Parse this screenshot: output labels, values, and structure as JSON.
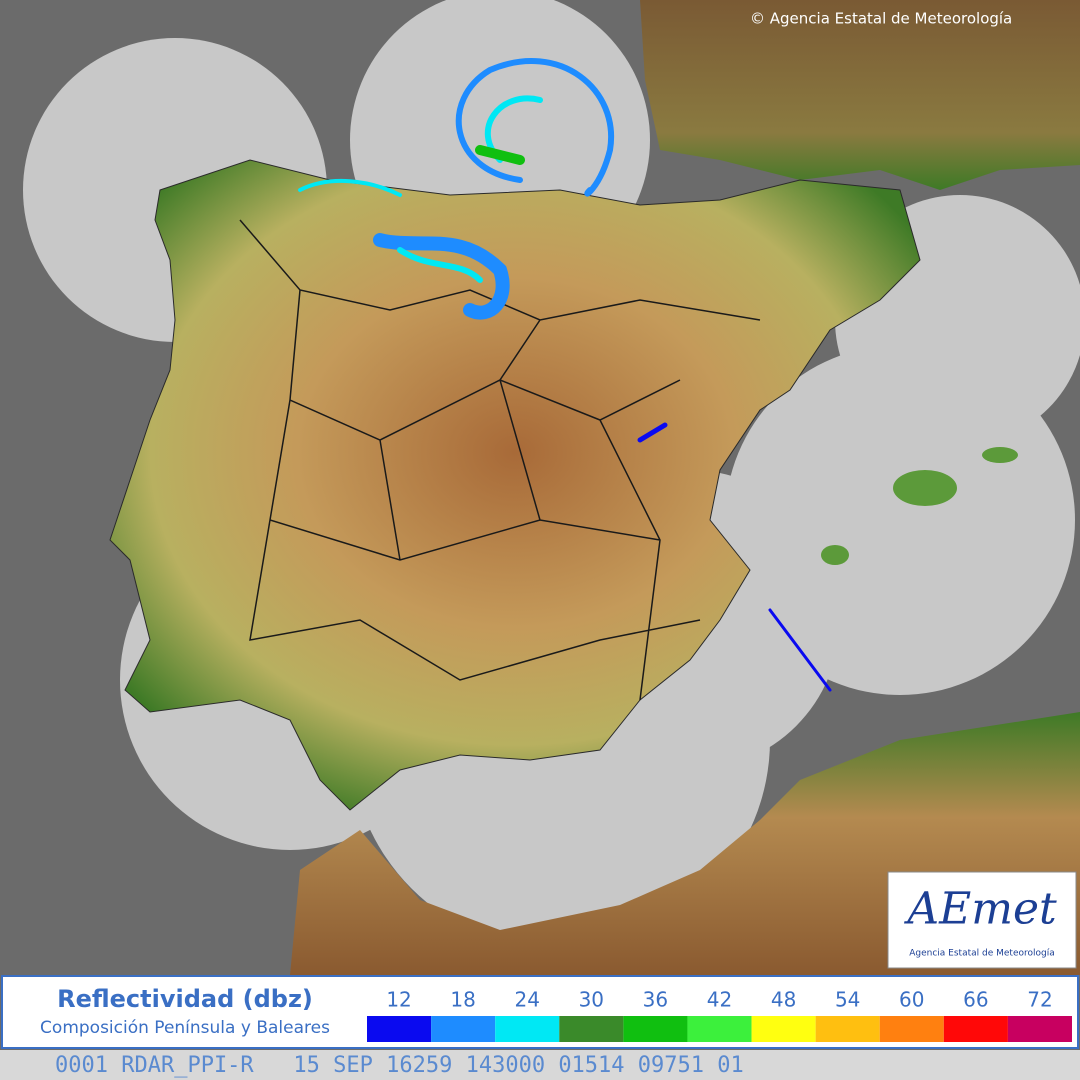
{
  "header": {
    "copyright": "© Agencia Estatal de Meteorología"
  },
  "logo": {
    "name": "AEmet",
    "subtitle": "Agencia Estatal de Meteorología"
  },
  "legend": {
    "title": "Reflectividad (dbz)",
    "subtitle": "Composición Península y Baleares",
    "levels": [
      {
        "value": 12,
        "color": "#0a0af0"
      },
      {
        "value": 18,
        "color": "#1e8cff"
      },
      {
        "value": 24,
        "color": "#00e8f4"
      },
      {
        "value": 30,
        "color": "#3a8a2a"
      },
      {
        "value": 36,
        "color": "#10bf10"
      },
      {
        "value": 42,
        "color": "#3cf03c"
      },
      {
        "value": 48,
        "color": "#ffff10"
      },
      {
        "value": 54,
        "color": "#ffbf10"
      },
      {
        "value": 60,
        "color": "#ff8010"
      },
      {
        "value": 66,
        "color": "#ff0808"
      },
      {
        "value": 72,
        "color": "#c80060"
      }
    ]
  },
  "footer": {
    "code": "0001 RDAR_PPI-R   15 SEP 16259 143000 01514 09751 01"
  }
}
